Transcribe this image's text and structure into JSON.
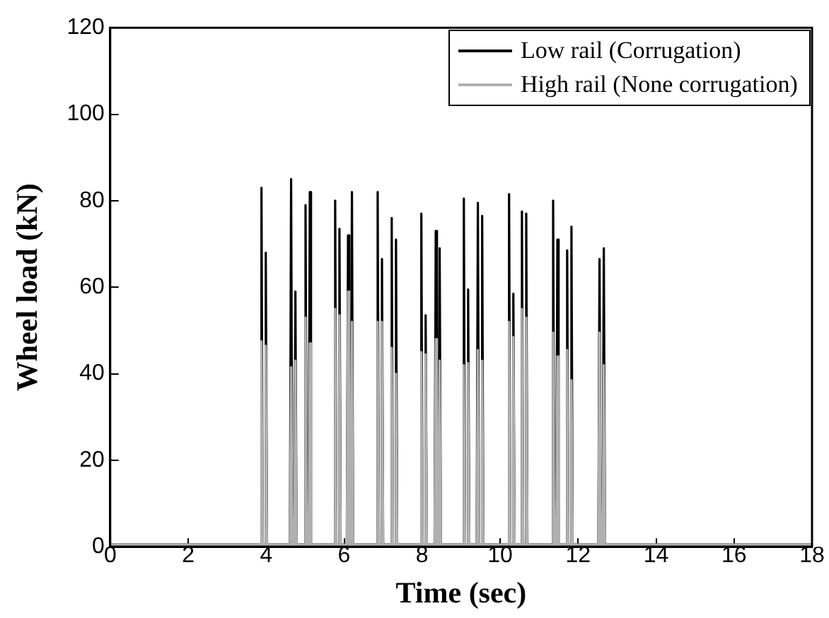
{
  "chart_data": {
    "type": "line",
    "xlabel": "Time (sec)",
    "ylabel": "Wheel load (kN)",
    "x": [
      0,
      3.85,
      3.88,
      3.91,
      3.96,
      3.99,
      4.02,
      4.61,
      4.64,
      4.67,
      4.72,
      4.75,
      4.78,
      4.98,
      5.01,
      5.04,
      5.09,
      5.12,
      5.15,
      5.74,
      5.77,
      5.8,
      5.85,
      5.88,
      5.91,
      6.07,
      6.1,
      6.13,
      6.17,
      6.2,
      6.23,
      6.83,
      6.86,
      6.89,
      6.94,
      6.97,
      7,
      7.19,
      7.22,
      7.25,
      7.3,
      7.33,
      7.36,
      7.95,
      7.98,
      8.01,
      8.06,
      8.09,
      8.12,
      8.32,
      8.35,
      8.38,
      8.42,
      8.45,
      8.48,
      9.04,
      9.07,
      9.1,
      9.15,
      9.18,
      9.21,
      9.4,
      9.43,
      9.46,
      9.51,
      9.54,
      9.57,
      10.2,
      10.23,
      10.26,
      10.31,
      10.34,
      10.37,
      10.53,
      10.56,
      10.59,
      10.64,
      10.67,
      10.7,
      11.33,
      11.36,
      11.39,
      11.44,
      11.47,
      11.5,
      11.69,
      11.72,
      11.75,
      11.8,
      11.83,
      11.86,
      12.52,
      12.55,
      12.58,
      12.63,
      12.66,
      12.69,
      18
    ],
    "series": [
      {
        "name": "Low rail (Corrugation)",
        "color": "#000000",
        "values": [
          0.5,
          0.5,
          83,
          0.5,
          0.5,
          68,
          0.5,
          0.5,
          85,
          0.5,
          0.5,
          59,
          0.5,
          0.5,
          79,
          0.5,
          0.5,
          82,
          0.5,
          0.5,
          80,
          0.5,
          0.5,
          73.5,
          0.5,
          0.5,
          72,
          0.5,
          0.5,
          82,
          0.5,
          0.5,
          82,
          0.5,
          0.5,
          66.5,
          0.5,
          0.5,
          76,
          0.5,
          0.5,
          71,
          0.5,
          0.5,
          77,
          0.5,
          0.5,
          53.5,
          0.5,
          0.5,
          73,
          0.5,
          0.5,
          69,
          0.5,
          0.5,
          80.5,
          0.5,
          0.5,
          59.5,
          0.5,
          0.5,
          79.5,
          0.5,
          0.5,
          76.5,
          0.5,
          0.5,
          81.5,
          0.5,
          0.5,
          58.5,
          0.5,
          0.5,
          77.5,
          0.5,
          0.5,
          77,
          0.5,
          0.5,
          80,
          0.5,
          0.5,
          71,
          0.5,
          0.5,
          68.5,
          0.5,
          0.5,
          74,
          0.5,
          0.5,
          66.5,
          0.5,
          0.5,
          69,
          0.5,
          0.5
        ]
      },
      {
        "name": "High rail (None corrugation)",
        "color": "#b0b0b0",
        "values": [
          0.5,
          0.5,
          47.5,
          0.5,
          0.5,
          46.5,
          0.5,
          0.5,
          41.5,
          0.5,
          0.5,
          43,
          0.5,
          0.5,
          53,
          0.5,
          0.5,
          47,
          0.5,
          0.5,
          55,
          0.5,
          0.5,
          53.5,
          0.5,
          0.5,
          59,
          0.5,
          0.5,
          52,
          0.5,
          0.5,
          52,
          0.5,
          0.5,
          52,
          0.5,
          0.5,
          46,
          0.5,
          0.5,
          40,
          0.5,
          0.5,
          45,
          0.5,
          0.5,
          44.5,
          0.5,
          0.5,
          48,
          0.5,
          0.5,
          43,
          0.5,
          0.5,
          42,
          0.5,
          0.5,
          42.5,
          0.5,
          0.5,
          45.5,
          0.5,
          0.5,
          43,
          0.5,
          0.5,
          52,
          0.5,
          0.5,
          48.5,
          0.5,
          0.5,
          55,
          0.5,
          0.5,
          53,
          0.5,
          0.5,
          49.5,
          0.5,
          0.5,
          44,
          0.5,
          0.5,
          45.5,
          0.5,
          0.5,
          38.5,
          0.5,
          0.5,
          49.5,
          0.5,
          0.5,
          42,
          0.5,
          0.5
        ]
      }
    ],
    "xlim": [
      0,
      18
    ],
    "xticks": [
      0,
      2,
      4,
      6,
      8,
      10,
      12,
      14,
      16,
      18
    ],
    "ylim": [
      0,
      120
    ],
    "yticks": [
      0,
      20,
      40,
      60,
      80,
      100,
      120
    ],
    "grid": false,
    "legend": "top right",
    "marker": "none",
    "line_style": "solid"
  }
}
